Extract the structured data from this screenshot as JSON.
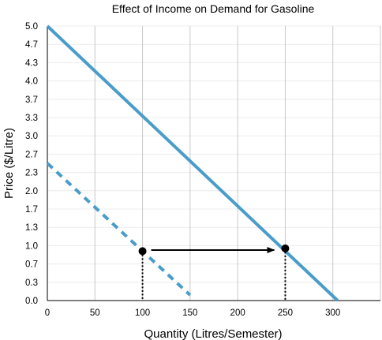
{
  "chart_data": {
    "type": "line",
    "title": "Effect of Income on Demand for Gasoline",
    "xlabel": "Quantity (Litres/Semester)",
    "ylabel": "Price ($/Litre)",
    "xlim": [
      0,
      350
    ],
    "ylim": [
      0,
      5.0
    ],
    "x_ticks": [
      "0",
      "50",
      "100",
      "150",
      "200",
      "250",
      "300"
    ],
    "y_ticks": [
      "0.0",
      "0.3",
      "0.7",
      "1.0",
      "1.3",
      "1.7",
      "2.0",
      "2.3",
      "2.7",
      "3.0",
      "3.3",
      "3.7",
      "4.0",
      "4.3",
      "4.7",
      "5.0"
    ],
    "grid": "vertical",
    "colors": {
      "demand": "#4a9cc9",
      "grid_major": "#c8c8c8",
      "grid_minor": "#ececec",
      "arrow": "#000000",
      "point": "#000000"
    },
    "series": [
      {
        "style": "dashed",
        "x": [
          0,
          150
        ],
        "y": [
          2.5,
          0.1
        ]
      },
      {
        "style": "solid",
        "x": [
          0,
          305
        ],
        "y": [
          5.0,
          0.0
        ]
      }
    ],
    "points": [
      {
        "x": 100,
        "y": 0.9
      },
      {
        "x": 250,
        "y": 0.95
      }
    ],
    "arrow": {
      "from": [
        100,
        0.92
      ],
      "to": [
        250,
        0.92
      ]
    },
    "drop_lines": [
      {
        "x": 100,
        "y": 0.9
      },
      {
        "x": 250,
        "y": 0.95
      }
    ]
  }
}
